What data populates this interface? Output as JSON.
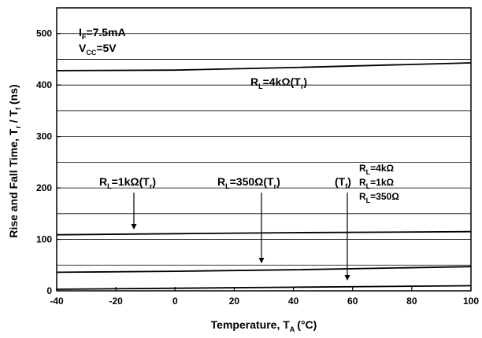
{
  "chart_data": {
    "type": "line",
    "xlabel": "Temperature, T",
    "xlabel_sub": "A",
    "xlabel_units": "(°C)",
    "ylabel": "Rise and Fall Time, T",
    "ylabel_sub1": "r",
    "ylabel_mid": " / T",
    "ylabel_sub2": "f",
    "ylabel_units": " (ns)",
    "xlim": [
      -40,
      100
    ],
    "ylim": [
      0,
      550
    ],
    "xticks": [
      -40,
      -20,
      0,
      20,
      40,
      60,
      80,
      100
    ],
    "yticks": [
      0,
      100,
      200,
      300,
      400,
      500
    ],
    "grid": "horizontal",
    "conditions": {
      "if_main": "I",
      "if_sub": "F",
      "if_val": "=7.5mA",
      "vcc_main": "V",
      "vcc_sub": "CC",
      "vcc_val": "=5V"
    },
    "series": [
      {
        "x": [
          -40,
          0,
          40,
          100
        ],
        "y": [
          428,
          429,
          434,
          443
        ]
      },
      {
        "x": [
          -40,
          0,
          40,
          100
        ],
        "y": [
          109,
          111,
          113,
          115
        ]
      },
      {
        "x": [
          -40,
          0,
          40,
          100
        ],
        "y": [
          36,
          38,
          41,
          47
        ]
      },
      {
        "x": [
          -40,
          0,
          40,
          100
        ],
        "y": [
          3,
          5,
          7,
          10
        ]
      }
    ],
    "annotations": {
      "rl4k_tr": {
        "pre": "R",
        "sub": "L",
        "post": "=4kΩ(T",
        "sub2": "r",
        "close": ")"
      },
      "rl1k_tr": {
        "pre": "R",
        "sub": "L",
        "post": "=1kΩ(T",
        "sub2": "r",
        "close": ")"
      },
      "rl350_tr": {
        "pre": "R",
        "sub": "L",
        "post": "=350Ω(T",
        "sub2": "r",
        "close": ")"
      },
      "tf_group": {
        "pre": "(T",
        "sub": "f",
        "close": ")"
      },
      "tf_items": [
        {
          "pre": "R",
          "sub": "L",
          "post": "=4kΩ"
        },
        {
          "pre": "R",
          "sub": "L",
          "post": "=1kΩ"
        },
        {
          "pre": "R",
          "sub": "L",
          "post": "=350Ω"
        }
      ]
    }
  }
}
